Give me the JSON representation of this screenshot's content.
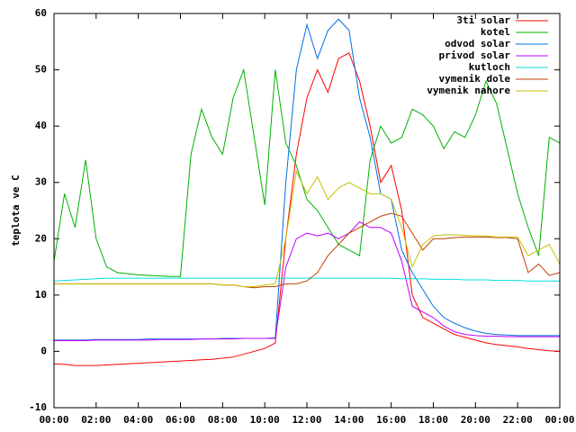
{
  "chart_data": {
    "type": "line",
    "y_label": "teplota ve C",
    "x": [
      0,
      0.5,
      1,
      1.5,
      2,
      2.5,
      3,
      3.5,
      4,
      4.5,
      5,
      5.5,
      6,
      6.5,
      7,
      7.5,
      8,
      8.5,
      9,
      9.5,
      10,
      10.5,
      11,
      11.5,
      12,
      12.5,
      13,
      13.5,
      14,
      14.5,
      15,
      15.5,
      16,
      16.5,
      17,
      17.5,
      18,
      18.5,
      19,
      19.5,
      20,
      20.5,
      21,
      21.5,
      22,
      22.5,
      23,
      23.5,
      24
    ],
    "xlim": [
      0,
      24
    ],
    "xticks": [
      {
        "value": 0,
        "label": "00:00"
      },
      {
        "value": 2,
        "label": "02:00"
      },
      {
        "value": 4,
        "label": "04:00"
      },
      {
        "value": 6,
        "label": "06:00"
      },
      {
        "value": 8,
        "label": "08:00"
      },
      {
        "value": 10,
        "label": "10:00"
      },
      {
        "value": 12,
        "label": "12:00"
      },
      {
        "value": 14,
        "label": "14:00"
      },
      {
        "value": 16,
        "label": "16:00"
      },
      {
        "value": 18,
        "label": "18:00"
      },
      {
        "value": 20,
        "label": "20:00"
      },
      {
        "value": 22,
        "label": "22:00"
      },
      {
        "value": 24,
        "label": "00:00"
      }
    ],
    "ylim": [
      -10,
      60
    ],
    "yticks": [
      -10,
      0,
      10,
      20,
      30,
      40,
      50,
      60
    ],
    "legend": "top-right",
    "series": [
      {
        "name": "3ti solar",
        "color": "#ff0000",
        "values": [
          -2.2,
          -2.3,
          -2.5,
          -2.5,
          -2.5,
          -2.4,
          -2.3,
          -2.2,
          -2.1,
          -2,
          -1.9,
          -1.8,
          -1.7,
          -1.6,
          -1.5,
          -1.4,
          -1.2,
          -1,
          -0.5,
          0,
          0.5,
          1.5,
          20,
          35,
          45,
          50,
          46,
          52,
          53,
          48,
          40,
          30,
          33,
          25,
          10,
          6,
          5,
          4,
          3,
          2.5,
          2,
          1.5,
          1.2,
          1,
          0.8,
          0.5,
          0.3,
          0.1,
          0
        ]
      },
      {
        "name": "kotel",
        "color": "#00b000",
        "values": [
          16,
          28,
          22,
          34,
          20,
          15,
          14,
          13.8,
          13.6,
          13.5,
          13.4,
          13.3,
          13.3,
          35,
          43,
          38,
          35,
          45,
          50,
          38,
          26,
          50,
          37,
          33,
          27,
          25,
          22,
          19,
          18,
          17,
          34,
          40,
          37,
          38,
          43,
          42,
          40,
          36,
          39,
          38,
          42,
          48,
          44,
          36,
          28,
          22,
          17,
          38,
          37
        ]
      },
      {
        "name": "odvod solar",
        "color": "#0070e0",
        "values": [
          2,
          2,
          2,
          2,
          2.1,
          2.1,
          2.1,
          2.1,
          2.1,
          2.2,
          2.2,
          2.2,
          2.2,
          2.2,
          2.2,
          2.2,
          2.3,
          2.3,
          2.3,
          2.3,
          2.3,
          2.4,
          30,
          50,
          58,
          52,
          57,
          59,
          57,
          45,
          38,
          28,
          27,
          18,
          14,
          11,
          8,
          6,
          5,
          4.2,
          3.6,
          3.2,
          3,
          2.9,
          2.8,
          2.8,
          2.8,
          2.8,
          2.8
        ]
      },
      {
        "name": "privod solar",
        "color": "#c000ff",
        "values": [
          1.9,
          1.9,
          1.9,
          1.9,
          2,
          2,
          2,
          2,
          2,
          2,
          2.1,
          2.1,
          2.1,
          2.1,
          2.2,
          2.2,
          2.2,
          2.2,
          2.3,
          2.3,
          2.3,
          2.3,
          15,
          20,
          21,
          20.5,
          21,
          20,
          21,
          23,
          22,
          22,
          21,
          16,
          8,
          7,
          6,
          4.5,
          3.5,
          3,
          2.8,
          2.7,
          2.7,
          2.6,
          2.6,
          2.6,
          2.6,
          2.6,
          2.6
        ]
      },
      {
        "name": "kutloch",
        "color": "#00e0e0",
        "values": [
          12.5,
          12.6,
          12.7,
          12.8,
          12.9,
          13,
          13,
          13,
          13,
          13,
          13,
          13,
          13,
          13,
          13,
          13,
          13,
          13,
          13,
          13,
          13,
          13,
          13,
          13,
          13,
          13,
          13,
          13,
          13,
          13,
          13,
          13,
          13,
          12.9,
          12.9,
          12.9,
          12.8,
          12.8,
          12.8,
          12.7,
          12.7,
          12.7,
          12.6,
          12.6,
          12.6,
          12.5,
          12.5,
          12.5,
          12.5
        ]
      },
      {
        "name": "vymenik dole",
        "color": "#c04000",
        "values": [
          12,
          12,
          12,
          12,
          12,
          12,
          12,
          12,
          12,
          12,
          12,
          12,
          12,
          12,
          12,
          12,
          11.8,
          11.8,
          11.5,
          11.3,
          11.5,
          11.5,
          12,
          12,
          12.5,
          14,
          17,
          19,
          21,
          22,
          23,
          24,
          24.5,
          24,
          21,
          18,
          20,
          20,
          20.2,
          20.3,
          20.3,
          20.3,
          20.2,
          20.2,
          20,
          14,
          15.5,
          13.5,
          14
        ]
      },
      {
        "name": "vymenik nahore",
        "color": "#c8c000",
        "values": [
          12,
          12,
          12,
          12,
          12,
          12,
          12,
          12,
          12,
          12,
          12,
          12,
          12,
          12,
          12,
          12,
          11.8,
          11.8,
          11.5,
          11.5,
          11.8,
          12,
          20,
          32,
          28,
          31,
          27,
          29,
          30,
          29,
          28,
          28,
          27,
          22,
          15,
          19,
          20.5,
          20.7,
          20.7,
          20.6,
          20.5,
          20.5,
          20.3,
          20.3,
          20.3,
          17,
          18,
          19,
          15.5
        ]
      }
    ]
  }
}
